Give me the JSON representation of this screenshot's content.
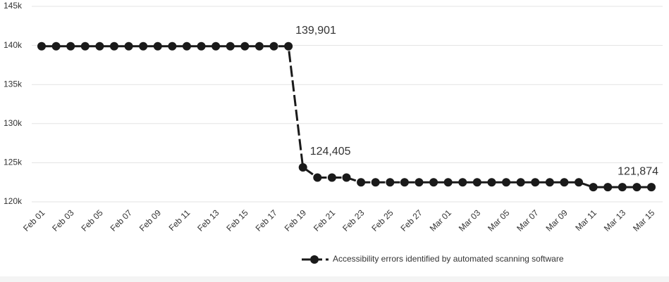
{
  "chart_data": {
    "type": "line",
    "x": [
      "Feb 01",
      null,
      "Feb 03",
      null,
      "Feb 05",
      null,
      "Feb 07",
      null,
      "Feb 09",
      null,
      "Feb 11",
      null,
      "Feb 13",
      null,
      "Feb 15",
      null,
      "Feb 17",
      null,
      "Feb 19",
      null,
      "Feb 21",
      null,
      "Feb 23",
      null,
      "Feb 25",
      null,
      "Feb 27",
      null,
      "Mar 01",
      null,
      "Mar 03",
      null,
      "Mar 05",
      null,
      "Mar 07",
      null,
      "Mar 09",
      null,
      "Mar 11",
      null,
      "Mar 13",
      null,
      "Mar 15"
    ],
    "series": [
      {
        "name": "Accessibility errors identified by automated scanning software",
        "color": "#1a1a1a",
        "values": [
          139901,
          139901,
          139901,
          139901,
          139901,
          139901,
          139901,
          139901,
          139901,
          139901,
          139901,
          139901,
          139901,
          139901,
          139901,
          139901,
          139901,
          139901,
          124405,
          123100,
          123100,
          123100,
          122500,
          122500,
          122500,
          122500,
          122500,
          122500,
          122500,
          122500,
          122500,
          122500,
          122500,
          122500,
          122500,
          122500,
          122500,
          122500,
          121874,
          121874,
          121874,
          121874,
          121874
        ],
        "value_labels": [
          null,
          null,
          null,
          null,
          null,
          null,
          null,
          null,
          null,
          null,
          null,
          null,
          null,
          null,
          null,
          null,
          null,
          "139,901",
          "124,405",
          null,
          null,
          null,
          null,
          null,
          null,
          null,
          null,
          null,
          null,
          null,
          null,
          null,
          null,
          null,
          null,
          null,
          null,
          null,
          null,
          null,
          null,
          null,
          "121,874"
        ]
      }
    ],
    "ylim": [
      120000,
      145000
    ],
    "yticks": [
      {
        "value": 120000,
        "label": "120k"
      },
      {
        "value": 125000,
        "label": "125k"
      },
      {
        "value": 130000,
        "label": "130k"
      },
      {
        "value": 135000,
        "label": "135k"
      },
      {
        "value": 140000,
        "label": "140k"
      },
      {
        "value": 145000,
        "label": "145k"
      }
    ],
    "grid": true,
    "legend": "bottom"
  }
}
